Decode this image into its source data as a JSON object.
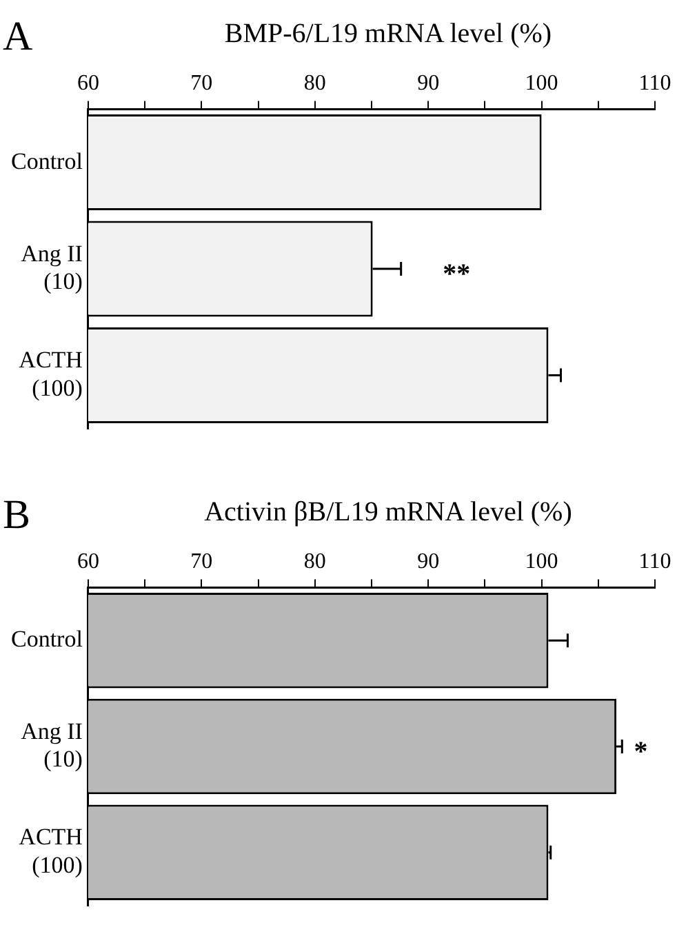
{
  "chart_data": [
    {
      "type": "bar",
      "orientation": "horizontal",
      "title": "BMP-6/L19 mRNA level (%)",
      "categories": [
        "Control",
        "Ang II\n(10)",
        "ACTH\n(100)"
      ],
      "values": [
        100,
        85.1,
        100.6
      ],
      "errors": [
        null,
        [
          85.1,
          87.6
        ],
        [
          100.6,
          101.7
        ]
      ],
      "color": "#f2f2f2",
      "xlim": [
        60,
        110
      ],
      "xticks": [
        60,
        {
          "value": 65,
          "label": null
        },
        70,
        {
          "value": 75,
          "label": null
        },
        80,
        {
          "value": 85,
          "label": null
        },
        90,
        {
          "value": 95,
          "label": null
        },
        100,
        {
          "value": 105,
          "label": null
        },
        110
      ],
      "grid": false,
      "annotations": [
        "A",
        "**"
      ]
    },
    {
      "type": "bar",
      "orientation": "horizontal",
      "title": "Activin βB/L19 mRNA level (%)",
      "categories": [
        "Control",
        "Ang II\n(10)",
        "ACTH\n(100)"
      ],
      "values": [
        100.6,
        106.6,
        100.6
      ],
      "errors": [
        [
          100.6,
          102.3
        ],
        [
          106.6,
          107.1
        ],
        [
          100.6,
          100.8
        ]
      ],
      "color": "#b8b8b8",
      "xlim": [
        60,
        110
      ],
      "xticks": [
        60,
        {
          "value": 65,
          "label": null
        },
        70,
        {
          "value": 75,
          "label": null
        },
        80,
        {
          "value": 85,
          "label": null
        },
        90,
        {
          "value": 95,
          "label": null
        },
        100,
        {
          "value": 105,
          "label": null
        },
        110
      ],
      "grid": false,
      "annotations": [
        "B",
        "*"
      ]
    }
  ]
}
